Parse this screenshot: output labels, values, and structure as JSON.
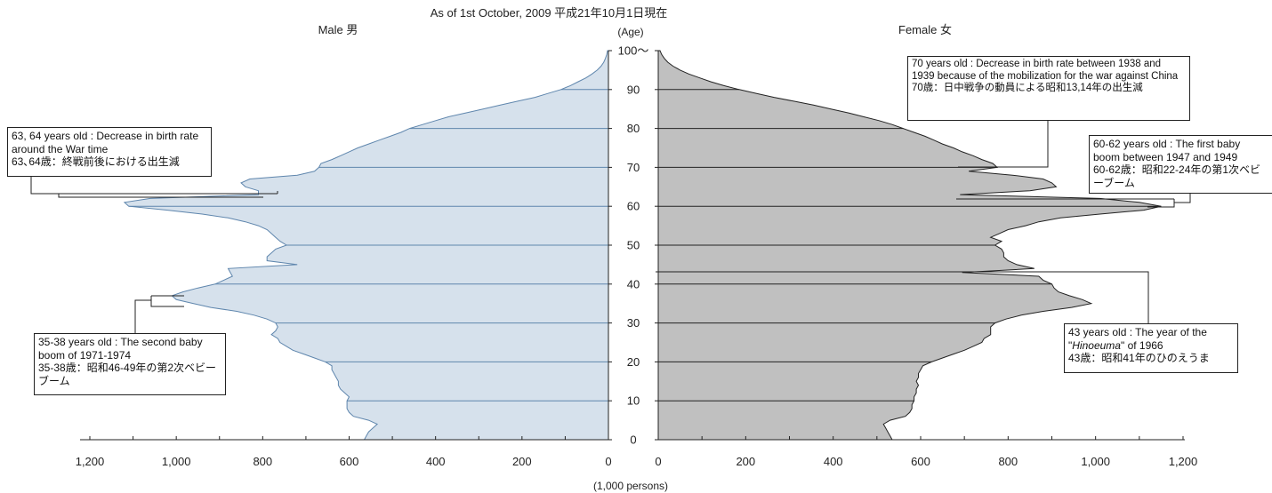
{
  "header": {
    "title": "As of 1st October, 2009 平成21年10月1日現在",
    "male_label": "Male 男",
    "female_label": "Female 女",
    "age_label": "(Age)",
    "unit_label": "(1,000 persons)"
  },
  "colors": {
    "male_fill": "#d6e1ec",
    "male_line": "#5f86ad",
    "female_fill": "#c0c0c0",
    "female_line": "#222222"
  },
  "annotations": {
    "male_63_64": {
      "en": "63, 64 years old : Decrease in birth rate around the War time",
      "jp": "63､64歳：終戦前後における出生減"
    },
    "male_35_38": {
      "en": "35-38 years old : The second baby boom of 1971-1974",
      "jp": "35-38歳：昭和46-49年の第2次ベビーブーム"
    },
    "female_70": {
      "en": "70 years old : Decrease in birth rate between 1938 and 1939 because of the mobilization for the war against China",
      "jp": "70歳：日中戦争の動員による昭和13,14年の出生減"
    },
    "female_60_62": {
      "en": "60-62 years old : The first baby boom between 1947 and 1949",
      "jp": "60-62歳：昭和22-24年の第1次ベビーブーム"
    },
    "female_43": {
      "en_pre": "43 years old : The year of the \"",
      "en_italic": "Hinoeuma",
      "en_post": "\" of 1966",
      "jp": "43歳：昭和41年のひのえうま"
    }
  },
  "chart_data": {
    "type": "area",
    "title": "As of 1st October, 2009 平成21年10月1日現在",
    "xlabel": "(1,000 persons)",
    "ylabel": "(Age)",
    "x_range": [
      0,
      1200
    ],
    "y_range": [
      0,
      100
    ],
    "x_ticks": [
      "1,200",
      "1,000",
      "800",
      "600",
      "400",
      "200",
      "0"
    ],
    "x_ticks_right": [
      "0",
      "200",
      "400",
      "600",
      "800",
      "1,000",
      "1,200"
    ],
    "y_ticks": [
      "0",
      "10",
      "20",
      "30",
      "40",
      "50",
      "60",
      "70",
      "80",
      "90",
      "100～"
    ],
    "grid": "horizontal every 10 years",
    "ages": [
      0,
      1,
      2,
      3,
      4,
      5,
      6,
      7,
      8,
      9,
      10,
      11,
      12,
      13,
      14,
      15,
      16,
      17,
      18,
      19,
      20,
      21,
      22,
      23,
      24,
      25,
      26,
      27,
      28,
      29,
      30,
      31,
      32,
      33,
      34,
      35,
      36,
      37,
      38,
      39,
      40,
      41,
      42,
      43,
      44,
      45,
      46,
      47,
      48,
      49,
      50,
      51,
      52,
      53,
      54,
      55,
      56,
      57,
      58,
      59,
      60,
      61,
      62,
      63,
      64,
      65,
      66,
      67,
      68,
      69,
      70,
      71,
      72,
      73,
      74,
      75,
      76,
      77,
      78,
      79,
      80,
      81,
      82,
      83,
      84,
      85,
      86,
      87,
      88,
      89,
      90,
      91,
      92,
      93,
      94,
      95,
      96,
      97,
      98,
      99,
      100
    ],
    "series": [
      {
        "name": "Male 男",
        "values": [
          565,
          560,
          555,
          545,
          535,
          555,
          590,
          600,
          605,
          605,
          605,
          600,
          610,
          620,
          625,
          625,
          630,
          635,
          640,
          640,
          655,
          680,
          705,
          730,
          745,
          760,
          765,
          780,
          770,
          765,
          770,
          790,
          820,
          860,
          920,
          960,
          1000,
          1010,
          985,
          950,
          910,
          890,
          870,
          875,
          880,
          720,
          790,
          790,
          780,
          770,
          745,
          760,
          770,
          780,
          790,
          810,
          840,
          880,
          940,
          1020,
          1110,
          1120,
          1060,
          810,
          810,
          840,
          850,
          830,
          720,
          680,
          670,
          665,
          640,
          620,
          600,
          580,
          555,
          530,
          505,
          480,
          460,
          430,
          400,
          370,
          330,
          290,
          250,
          210,
          170,
          140,
          110,
          88,
          70,
          52,
          38,
          26,
          17,
          11,
          7,
          4,
          2
        ]
      },
      {
        "name": "Female 女",
        "values": [
          535,
          530,
          525,
          520,
          515,
          530,
          565,
          575,
          580,
          580,
          585,
          585,
          590,
          590,
          595,
          590,
          595,
          595,
          600,
          605,
          625,
          650,
          675,
          700,
          720,
          740,
          745,
          760,
          760,
          760,
          770,
          795,
          830,
          880,
          945,
          990,
          970,
          940,
          915,
          905,
          900,
          880,
          870,
          695,
          860,
          820,
          800,
          790,
          790,
          785,
          770,
          785,
          760,
          780,
          800,
          840,
          870,
          920,
          1010,
          1110,
          1150,
          1100,
          1010,
          690,
          850,
          910,
          900,
          880,
          810,
          710,
          775,
          765,
          740,
          720,
          695,
          675,
          650,
          630,
          610,
          585,
          560,
          535,
          505,
          470,
          435,
          395,
          355,
          310,
          265,
          225,
          185,
          150,
          120,
          95,
          70,
          50,
          34,
          22,
          14,
          8,
          4
        ]
      }
    ]
  }
}
